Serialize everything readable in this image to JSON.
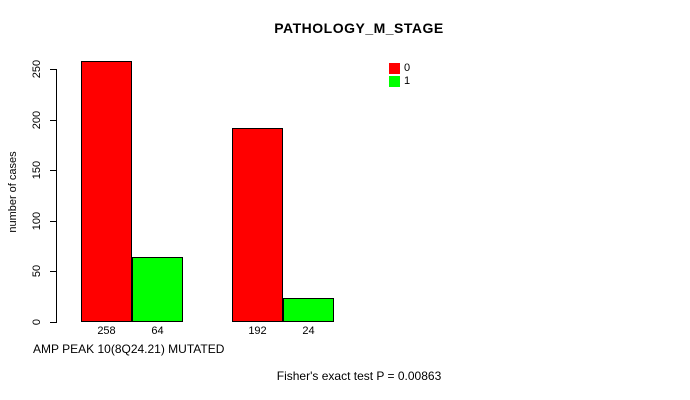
{
  "chart_data": {
    "type": "bar",
    "title": "PATHOLOGY_M_STAGE",
    "ylabel": "number of cases",
    "xlabel": "AMP PEAK 10(8Q24.21) MUTATED",
    "annotation": "Fisher's exact test P = 0.00863",
    "ylim": [
      0,
      250
    ],
    "yticks": [
      0,
      50,
      100,
      150,
      200,
      250
    ],
    "categories": [
      "",
      ""
    ],
    "series": [
      {
        "name": "0",
        "color": "#FF0000",
        "values": [
          258,
          192
        ]
      },
      {
        "name": "1",
        "color": "#00FF00",
        "values": [
          64,
          24
        ]
      }
    ],
    "legend": {
      "position": "top-right",
      "entries": [
        {
          "label": "0",
          "color": "#FF0000"
        },
        {
          "label": "1",
          "color": "#00FF00"
        }
      ]
    },
    "grid": false,
    "bar_border_color": "#000000",
    "background_color": "#FFFFFF"
  }
}
